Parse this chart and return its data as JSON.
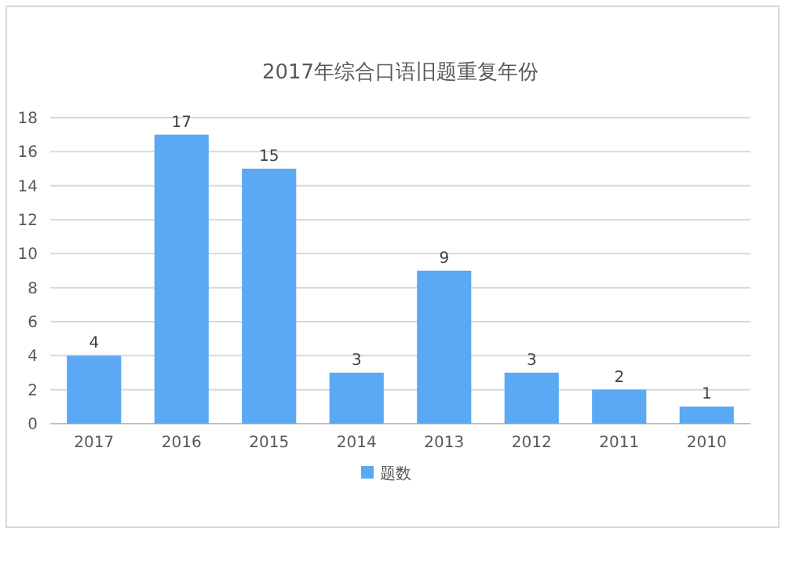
{
  "chart_data": {
    "type": "bar",
    "title": "2017年综合口语旧题重复年份",
    "categories": [
      "2017",
      "2016",
      "2015",
      "2014",
      "2013",
      "2012",
      "2011",
      "2010"
    ],
    "series": [
      {
        "name": "题数",
        "color": "#5ba8f5",
        "values": [
          4,
          17,
          15,
          3,
          9,
          3,
          2,
          1
        ]
      }
    ],
    "ylim": [
      0,
      18
    ],
    "yticks": [
      0,
      2,
      4,
      6,
      8,
      10,
      12,
      14,
      16,
      18
    ],
    "grid": "y",
    "legend": "bottom",
    "data_labels": true
  }
}
